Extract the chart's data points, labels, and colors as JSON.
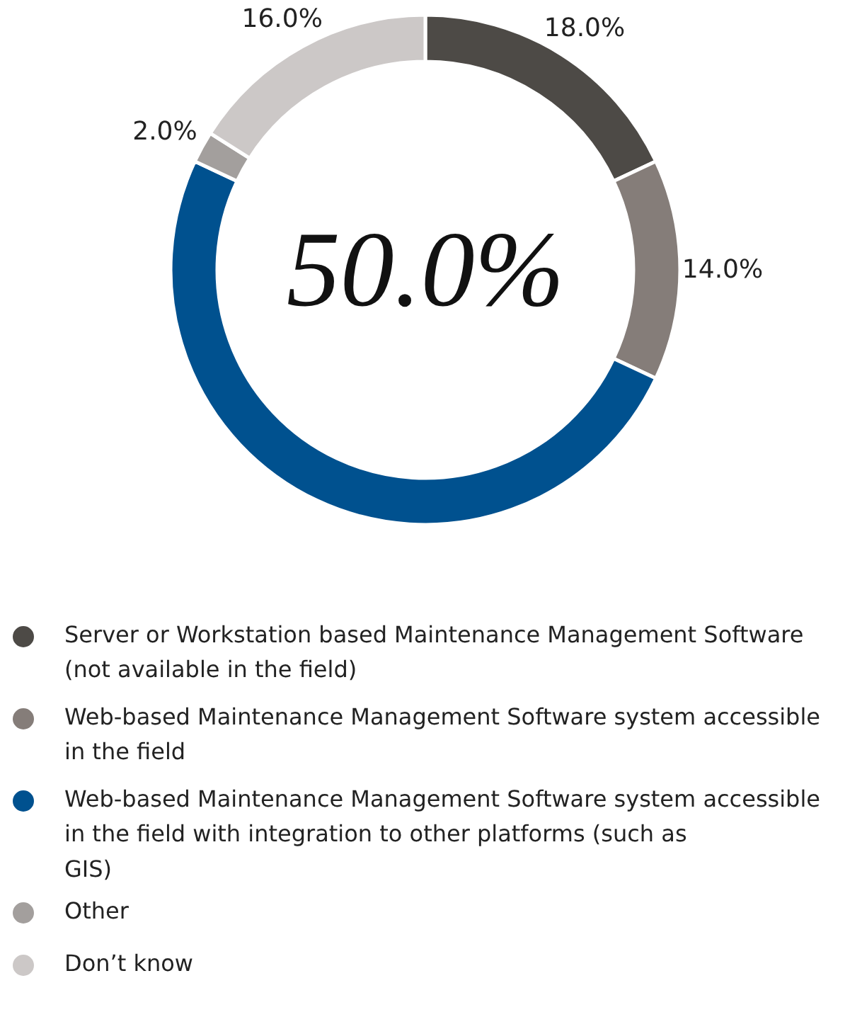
{
  "chart_data": {
    "type": "donut",
    "categories": [
      "Server or Workstation based Maintenance Management Software (not available in the field)",
      "Web-based Maintenance Management Software system accessible in the field",
      "Web-based Maintenance Management Software system accessible in the field with integration to other platforms (such as GIS)",
      "Other",
      "Don’t know"
    ],
    "values": [
      18.0,
      14.0,
      50.0,
      2.0,
      16.0
    ],
    "colors": [
      "#4d4a46",
      "#857d79",
      "#00518f",
      "#a39f9d",
      "#ccc8c7"
    ],
    "value_labels": [
      "18.0%",
      "14.0%",
      null,
      "2.0%",
      "16.0%"
    ],
    "annotations": [
      "50.0%"
    ],
    "legend": "bottom"
  }
}
